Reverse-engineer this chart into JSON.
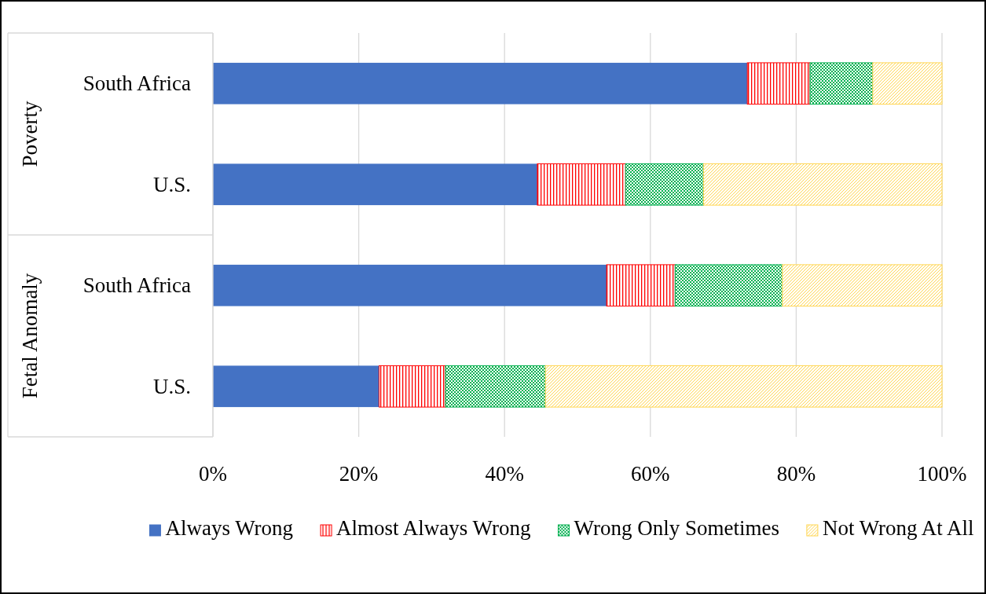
{
  "chart_data": {
    "type": "bar",
    "orientation": "horizontal",
    "stacked": true,
    "categories": [
      "South Africa",
      "U.S.",
      "South Africa",
      "U.S."
    ],
    "annotations": [
      "Poverty",
      "Fetal Anomaly"
    ],
    "series": [
      {
        "name": "Always Wrong",
        "color": "#4472c4",
        "values": [
          73.3,
          44.5,
          54.0,
          22.8
        ]
      },
      {
        "name": "Almost Always Wrong",
        "color": "#ff0000",
        "values": [
          8.6,
          12.1,
          9.4,
          9.1
        ]
      },
      {
        "name": "Wrong Only Sometimes",
        "color": "#00b050",
        "values": [
          8.6,
          10.7,
          14.7,
          13.7
        ]
      },
      {
        "name": "Not Wrong At All",
        "color": "#ffd54f",
        "values": [
          9.5,
          32.7,
          21.9,
          54.4
        ]
      }
    ],
    "xlim": [
      0,
      100
    ],
    "xticks": [
      {
        "value": 0,
        "label": "0%"
      },
      {
        "value": 20,
        "label": "20%"
      },
      {
        "value": 40,
        "label": "40%"
      },
      {
        "value": 60,
        "label": "60%"
      },
      {
        "value": 80,
        "label": "80%"
      },
      {
        "value": 100,
        "label": "100%"
      }
    ],
    "grid": "x",
    "legend": "bottom"
  }
}
